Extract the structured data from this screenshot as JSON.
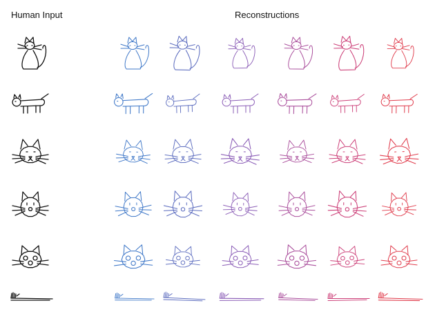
{
  "headers": {
    "input": "Human Input",
    "reconstructions": "Reconstructions"
  },
  "colors": {
    "input": "#111111",
    "reconstruction_gradient": [
      "#3f78c8",
      "#5f6fc0",
      "#8a5cb6",
      "#aa4e9c",
      "#cc3f78",
      "#e03c4c"
    ]
  },
  "grid": {
    "columns": [
      "input",
      "reconstruction",
      "reconstruction",
      "reconstruction",
      "reconstruction",
      "reconstruction",
      "reconstruction"
    ],
    "rows": [
      {
        "subject": "cat-sitting-sideways"
      },
      {
        "subject": "cat-lying-sideways"
      },
      {
        "subject": "cat-face-with-ears"
      },
      {
        "subject": "cat-face-round"
      },
      {
        "subject": "cat-face-with-nose-circles"
      },
      {
        "subject": "flattened-cat-scribble"
      }
    ]
  }
}
